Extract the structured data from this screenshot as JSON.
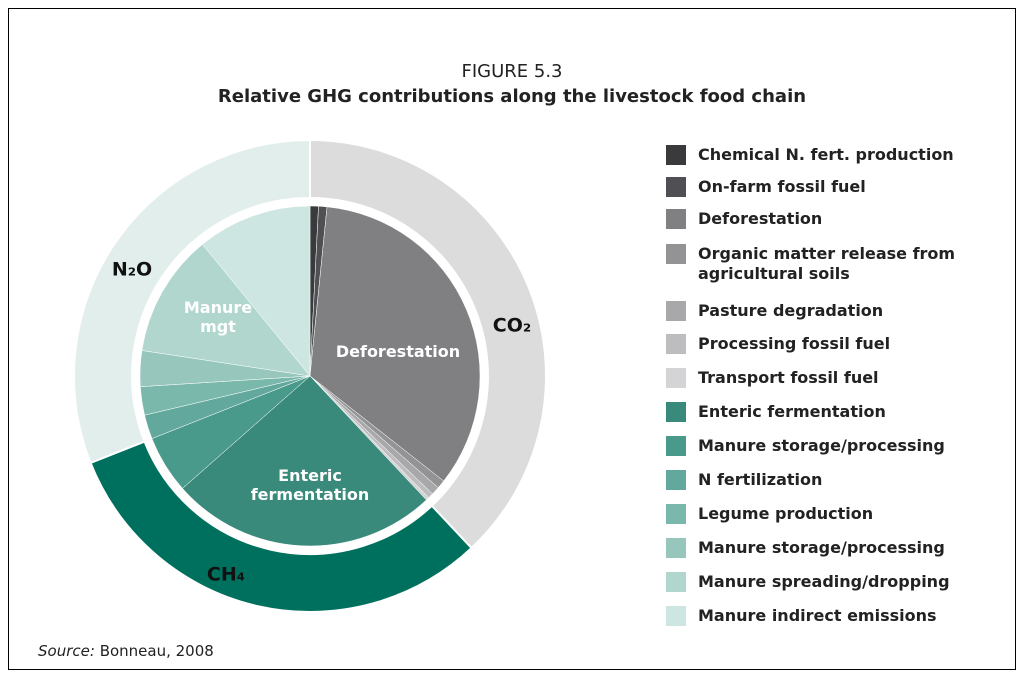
{
  "chart_data": {
    "type": "pie",
    "title": "FIGURE 5.3",
    "subtitle": "Relative GHG contributions along the livestock food chain",
    "source_label": "Source:",
    "source": "Bonneau, 2008",
    "annotations": [
      "Deforestation",
      "Manure mgt",
      "Enteric fermentation"
    ],
    "rings": [
      {
        "categories": [
          "Chemical N. fert. production",
          "On-farm fossil fuel",
          "Deforestation",
          "Organic matter release from agricultural soils",
          "Pasture degradation",
          "Processing fossil fuel",
          "Transport fossil fuel",
          "Enteric fermentation",
          "Manure storage/processing",
          "N fertilization",
          "Legume production",
          "Manure storage/processing",
          "Manure spreading/dropping",
          "Manure indirect emissions"
        ],
        "values": [
          0.8,
          0.8,
          34.0,
          0.8,
          0.8,
          0.5,
          0.3,
          25.5,
          5.5,
          2.3,
          2.7,
          3.4,
          11.7,
          10.9
        ],
        "colors": [
          "#3a3a3c",
          "#505054",
          "#808082",
          "#939395",
          "#a8a8aa",
          "#bdbdc0",
          "#d4d4d6",
          "#3a8a7c",
          "#4a9a8c",
          "#62a89c",
          "#7ab8ac",
          "#96c6bc",
          "#b0d6ce",
          "#cde6e1"
        ]
      },
      {
        "categories": [
          "CO₂",
          "CH₄",
          "N₂O"
        ],
        "values": [
          38,
          31,
          31
        ],
        "colors": [
          "#dcdcdd",
          "#00705e",
          "#e2eeec"
        ]
      }
    ]
  }
}
